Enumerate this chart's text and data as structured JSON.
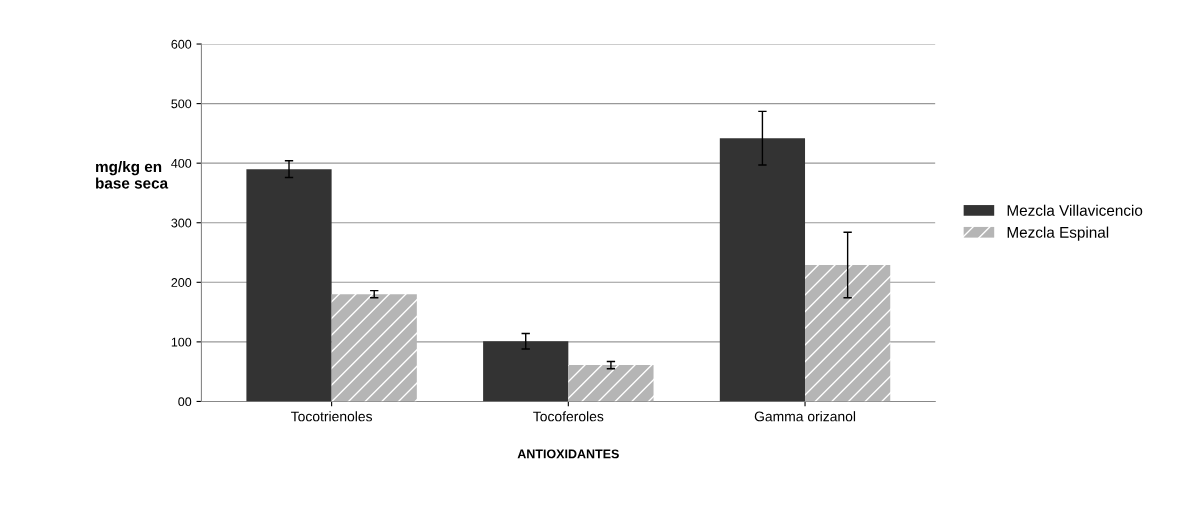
{
  "chart_data": {
    "type": "bar",
    "xlabel": "ANTIOXIDANTES",
    "ylabel": "mg/kg en\nbase seca",
    "categories": [
      "Tocotrienoles",
      "Tocoferoles",
      "Gamma orizanol"
    ],
    "series": [
      {
        "name": "Mezcla Villavicencio",
        "color": "#333333",
        "values": [
          390,
          101,
          442
        ],
        "errors": [
          14,
          13,
          45
        ]
      },
      {
        "name": "Mezcla Espinal",
        "color": "#b5b5b5",
        "values": [
          180,
          61,
          229
        ],
        "errors": [
          6,
          6,
          55
        ]
      }
    ],
    "ylim": [
      0,
      600
    ],
    "yticks": [
      {
        "value": 0,
        "label": "00"
      },
      100,
      200,
      300,
      400,
      500,
      600
    ],
    "grid": "y",
    "legend": "right"
  }
}
